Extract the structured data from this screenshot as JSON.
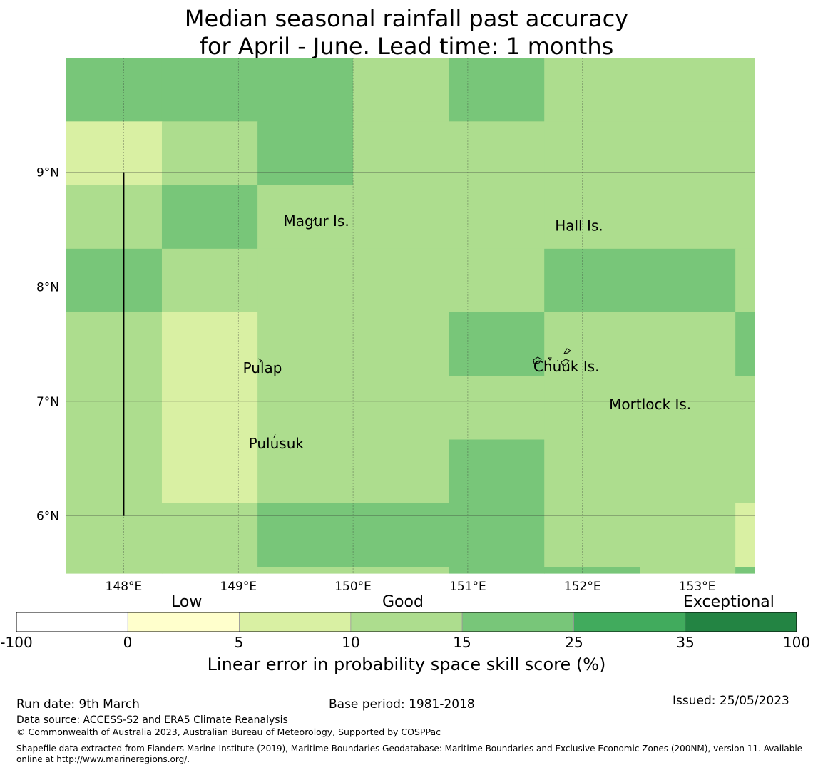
{
  "title": {
    "line1": "Median seasonal rainfall past accuracy",
    "line2": "for April - June. Lead time: 1 months"
  },
  "map": {
    "lon_range": [
      147.5,
      153.5
    ],
    "lat_range": [
      5.5,
      10.0
    ],
    "grid_lon_edges": [
      147.5,
      148.333,
      149.167,
      150.0,
      150.833,
      151.667,
      152.5,
      153.333,
      153.5
    ],
    "grid_lat_edges": [
      10.0,
      9.444,
      8.889,
      8.333,
      7.778,
      7.222,
      6.667,
      6.111,
      5.556,
      5.5
    ],
    "cell_classes": [
      [
        4,
        4,
        4,
        3,
        4,
        3,
        3,
        3
      ],
      [
        2,
        3,
        4,
        3,
        3,
        3,
        3,
        3
      ],
      [
        3,
        4,
        3,
        3,
        3,
        3,
        3,
        3
      ],
      [
        4,
        3,
        3,
        3,
        3,
        4,
        4,
        3
      ],
      [
        3,
        2,
        3,
        3,
        4,
        3,
        3,
        4
      ],
      [
        3,
        2,
        3,
        3,
        3,
        3,
        3,
        3
      ],
      [
        3,
        2,
        3,
        3,
        4,
        3,
        3,
        3
      ],
      [
        3,
        3,
        4,
        4,
        4,
        3,
        3,
        2
      ],
      [
        3,
        3,
        3,
        3,
        4,
        4,
        3,
        4
      ]
    ],
    "x_ticks": [
      {
        "lon": 148,
        "label": "148°E"
      },
      {
        "lon": 149,
        "label": "149°E"
      },
      {
        "lon": 150,
        "label": "150°E"
      },
      {
        "lon": 151,
        "label": "151°E"
      },
      {
        "lon": 152,
        "label": "152°E"
      },
      {
        "lon": 153,
        "label": "153°E"
      }
    ],
    "y_ticks": [
      {
        "lat": 9,
        "label": "9°N"
      },
      {
        "lat": 8,
        "label": "8°N"
      },
      {
        "lat": 7,
        "label": "7°N"
      },
      {
        "lat": 6,
        "label": "6°N"
      }
    ],
    "places": [
      {
        "name": "Magur Is.",
        "lon": 149.68,
        "lat": 8.53
      },
      {
        "name": "Hall Is.",
        "lon": 151.97,
        "lat": 8.49
      },
      {
        "name": "Pulap",
        "lon": 149.21,
        "lat": 7.25
      },
      {
        "name": "Chuuk Is.",
        "lon": 151.86,
        "lat": 7.26
      },
      {
        "name": "Mortlock Is.",
        "lon": 152.59,
        "lat": 6.93
      },
      {
        "name": "Pulusuk",
        "lon": 149.33,
        "lat": 6.59
      }
    ],
    "boundary_line": {
      "lon": 148.0,
      "lat_from": 9.0,
      "lat_to": 6.0
    }
  },
  "colorbar": {
    "boundaries": [
      "-100",
      "0",
      "5",
      "10",
      "15",
      "25",
      "35",
      "100"
    ],
    "colors": [
      "#ffffff",
      "#ffffcc",
      "#d9f0a3",
      "#addd8e",
      "#78c679",
      "#41ab5d",
      "#238443"
    ],
    "category_labels": [
      "Low",
      "Good",
      "Exceptional"
    ],
    "label": "Linear error in probability space skill score (%)"
  },
  "footer": {
    "run_date": "Run date: 9th March",
    "base_period": "Base period: 1981-2018",
    "issued": "Issued: 25/05/2023",
    "data_source": "Data source: ACCESS-S2 and ERA5 Climate Reanalysis",
    "copyright": "© Commonwealth of Australia 2023, Australian Bureau of Meteorology, Supported by COSPPac",
    "shapefile_line1": "Shapefile data extracted from Flanders Marine Institute (2019), Maritime Boundaries Geodatabase: Maritime Boundaries and Exclusive Economic Zones (200NM), version 11. Available",
    "shapefile_line2": "online at http://www.marineregions.org/."
  }
}
